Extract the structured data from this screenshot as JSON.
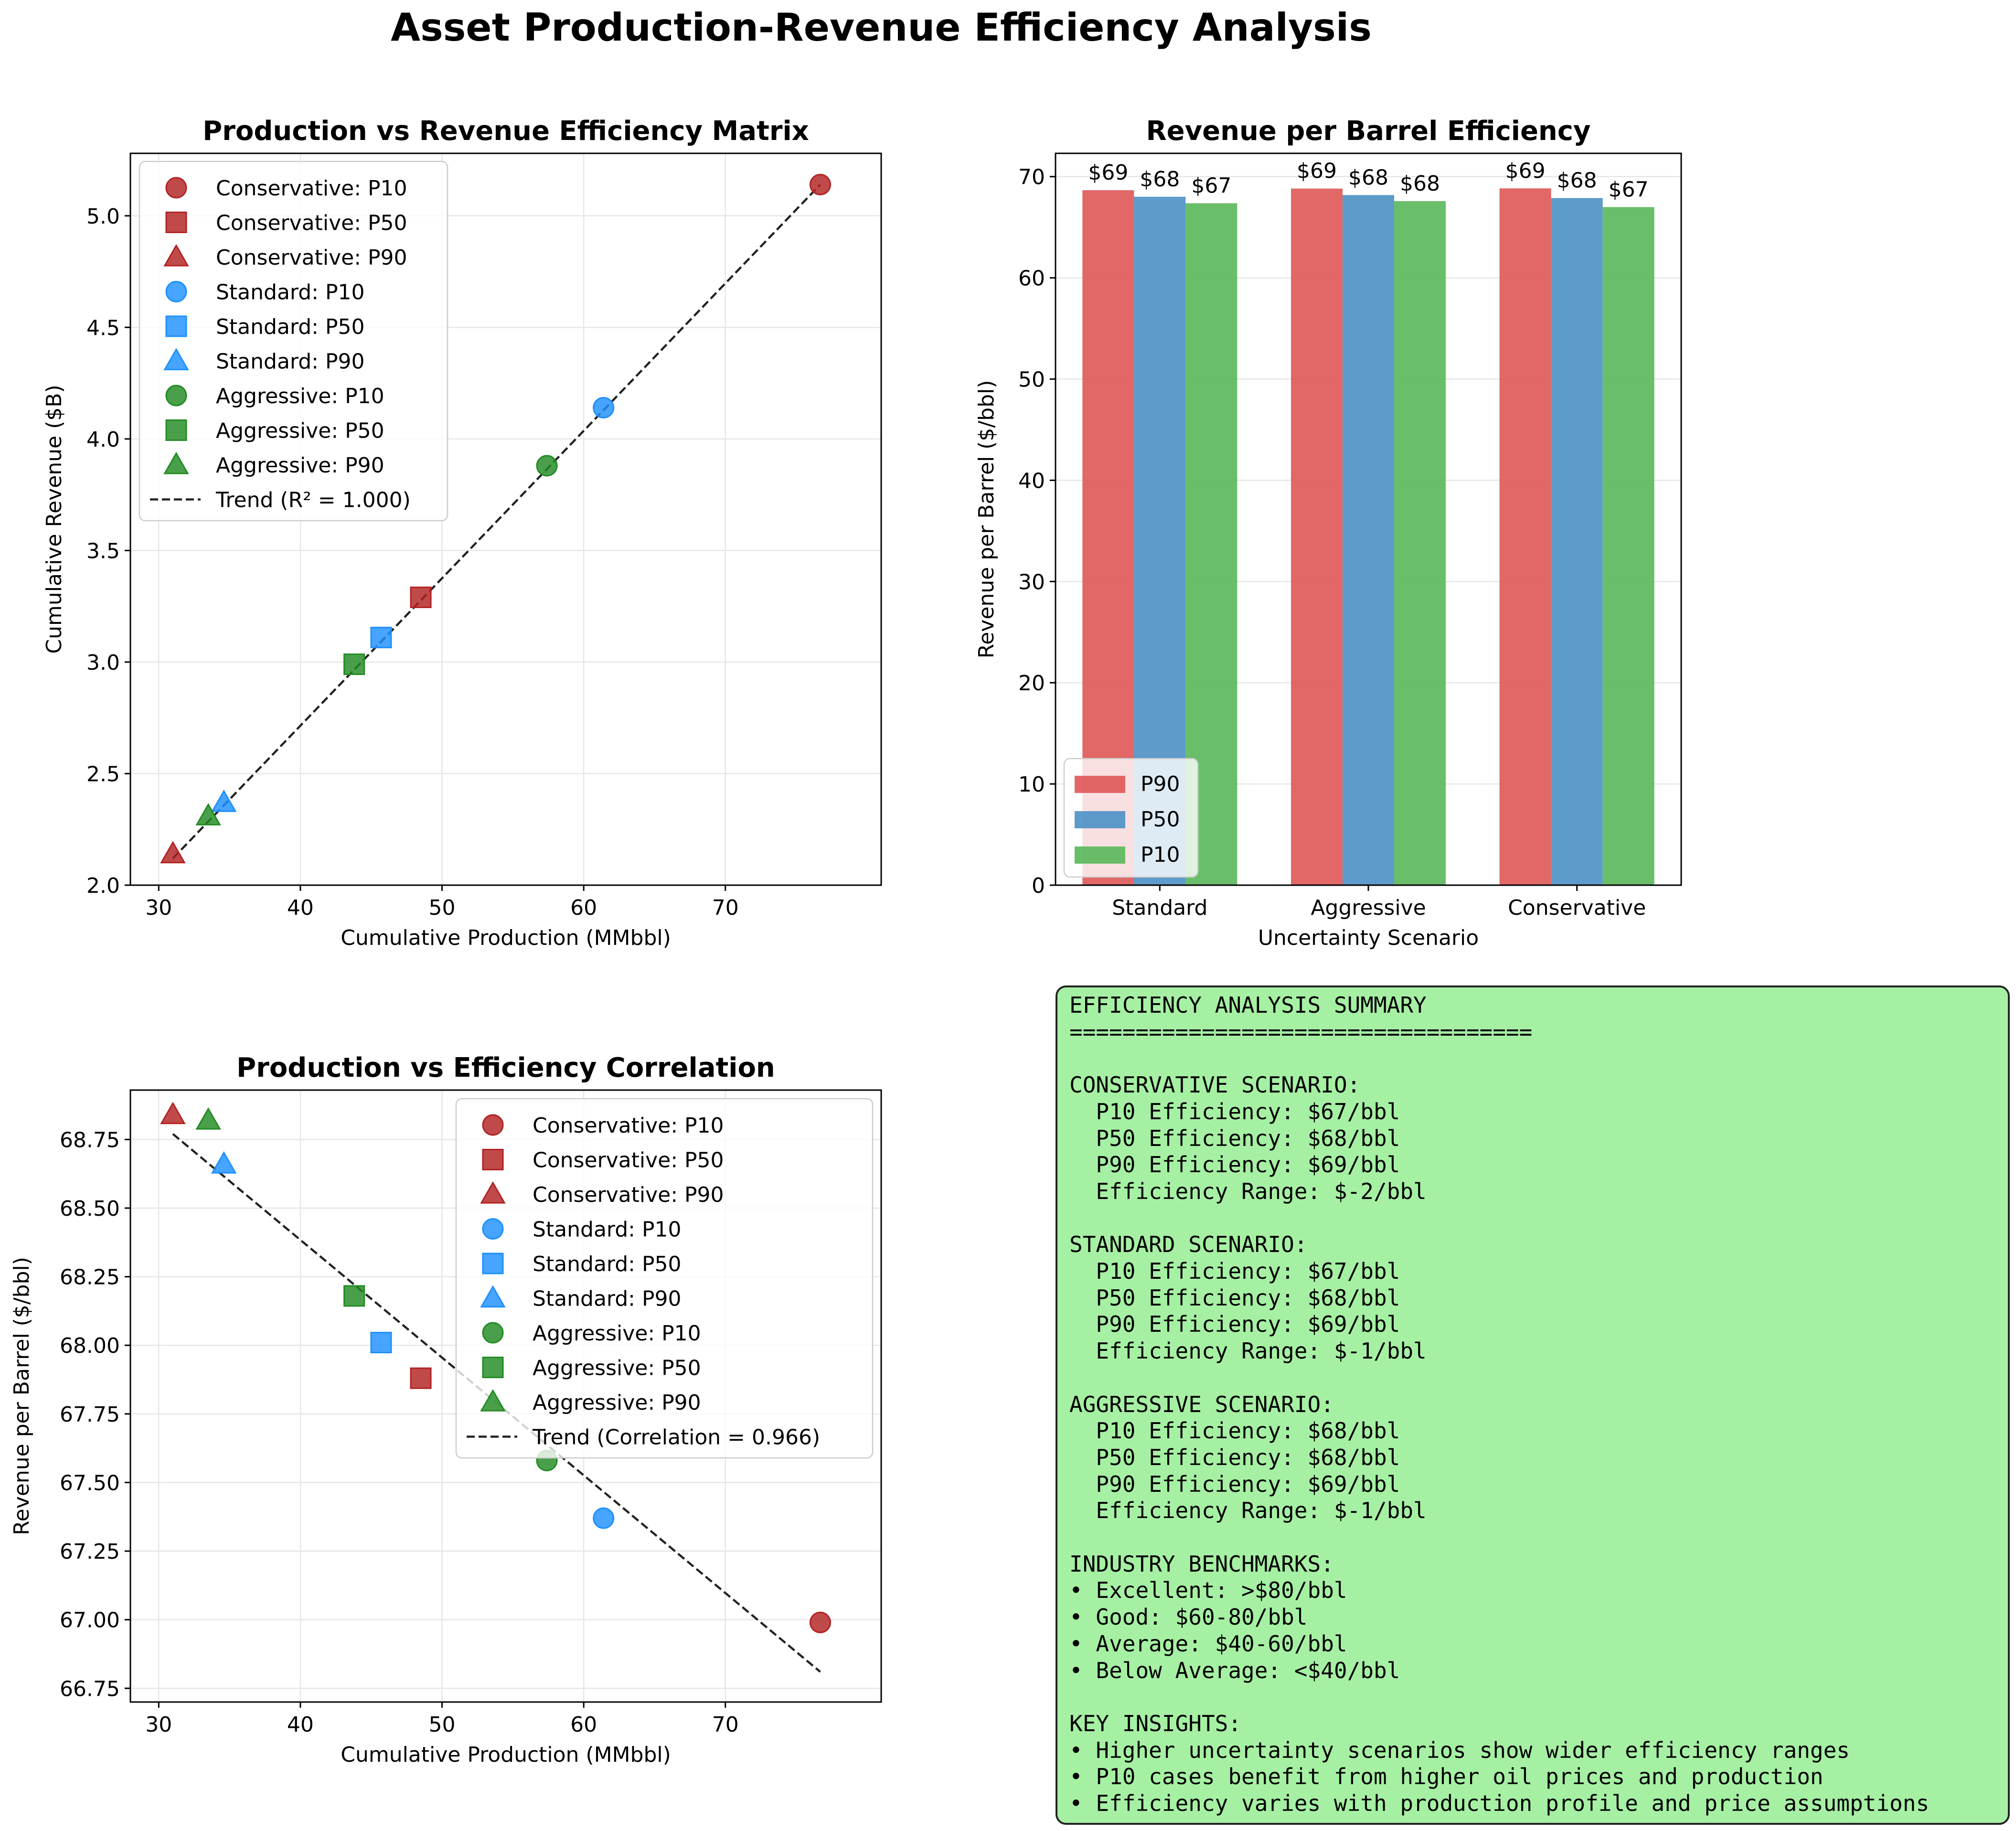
{
  "figure": {
    "title": "Asset Production-Revenue Efficiency Analysis"
  },
  "colors": {
    "Conservative": "#b22222",
    "Standard": "#1e90ff",
    "Aggressive": "#228b22",
    "P90": "#e05a5a",
    "P50": "#4f93c6",
    "P10": "#5cb85c"
  },
  "chart_data": [
    {
      "id": "matrix",
      "type": "scatter",
      "title": "Production vs Revenue Efficiency Matrix",
      "xlabel": "Cumulative Production (MMbbl)",
      "ylabel": "Cumulative Revenue ($B)",
      "xlim": [
        28.0,
        81.0
      ],
      "ylim": [
        2.0,
        5.28
      ],
      "xticks": [
        30,
        40,
        50,
        60,
        70
      ],
      "yticks": [
        2.0,
        2.5,
        3.0,
        3.5,
        4.0,
        4.5,
        5.0
      ],
      "ytick_labels": [
        "2.0",
        "2.5",
        "3.0",
        "3.5",
        "4.0",
        "4.5",
        "5.0"
      ],
      "grid": true,
      "legend": "upper left",
      "series": [
        {
          "name": "Conservative: P10",
          "scenario": "Conservative",
          "marker": "circle",
          "x": 76.7,
          "y": 5.14
        },
        {
          "name": "Conservative: P50",
          "scenario": "Conservative",
          "marker": "square",
          "x": 48.5,
          "y": 3.29
        },
        {
          "name": "Conservative: P90",
          "scenario": "Conservative",
          "marker": "triangle",
          "x": 31.0,
          "y": 2.14
        },
        {
          "name": "Standard: P10",
          "scenario": "Standard",
          "marker": "circle",
          "x": 61.4,
          "y": 4.14
        },
        {
          "name": "Standard: P50",
          "scenario": "Standard",
          "marker": "square",
          "x": 45.7,
          "y": 3.11
        },
        {
          "name": "Standard: P90",
          "scenario": "Standard",
          "marker": "triangle",
          "x": 34.6,
          "y": 2.37
        },
        {
          "name": "Aggressive: P10",
          "scenario": "Aggressive",
          "marker": "circle",
          "x": 57.4,
          "y": 3.88
        },
        {
          "name": "Aggressive: P50",
          "scenario": "Aggressive",
          "marker": "square",
          "x": 43.8,
          "y": 2.99
        },
        {
          "name": "Aggressive: P90",
          "scenario": "Aggressive",
          "marker": "triangle",
          "x": 33.5,
          "y": 2.31
        }
      ],
      "trend": {
        "name": "Trend (R² = 1.000)",
        "x": [
          31.0,
          76.7
        ],
        "y": [
          2.12,
          5.14
        ]
      }
    },
    {
      "id": "bars",
      "type": "bar",
      "title": "Revenue per Barrel Efficiency",
      "xlabel": "Uncertainty Scenario",
      "ylabel": "Revenue per Barrel ($/bbl)",
      "categories": [
        "Standard",
        "Aggressive",
        "Conservative"
      ],
      "ylim": [
        0,
        72.3
      ],
      "yticks": [
        0,
        10,
        20,
        30,
        40,
        50,
        60,
        70
      ],
      "grid": true,
      "legend": "lower left",
      "series": [
        {
          "name": "P90",
          "values": [
            68.66,
            68.82,
            68.84
          ],
          "labels": [
            "$69",
            "$69",
            "$69"
          ]
        },
        {
          "name": "P50",
          "values": [
            68.01,
            68.18,
            67.88
          ],
          "labels": [
            "$68",
            "$68",
            "$68"
          ]
        },
        {
          "name": "P10",
          "values": [
            67.37,
            67.58,
            66.99
          ],
          "labels": [
            "$67",
            "$68",
            "$67"
          ]
        }
      ]
    },
    {
      "id": "correlation",
      "type": "scatter",
      "title": "Production vs Efficiency Correlation",
      "xlabel": "Cumulative Production (MMbbl)",
      "ylabel": "Revenue per Barrel ($/bbl)",
      "xlim": [
        28.0,
        81.0
      ],
      "ylim": [
        66.7,
        68.93
      ],
      "xticks": [
        30,
        40,
        50,
        60,
        70
      ],
      "yticks": [
        66.75,
        67.0,
        67.25,
        67.5,
        67.75,
        68.0,
        68.25,
        68.5,
        68.75
      ],
      "ytick_labels": [
        "66.75",
        "67.00",
        "67.25",
        "67.50",
        "67.75",
        "68.00",
        "68.25",
        "68.50",
        "68.75"
      ],
      "grid": true,
      "legend": "upper right",
      "series": [
        {
          "name": "Conservative: P10",
          "scenario": "Conservative",
          "marker": "circle",
          "x": 76.7,
          "y": 66.99
        },
        {
          "name": "Conservative: P50",
          "scenario": "Conservative",
          "marker": "square",
          "x": 48.5,
          "y": 67.88
        },
        {
          "name": "Conservative: P90",
          "scenario": "Conservative",
          "marker": "triangle",
          "x": 31.0,
          "y": 68.84
        },
        {
          "name": "Standard: P10",
          "scenario": "Standard",
          "marker": "circle",
          "x": 61.4,
          "y": 67.37
        },
        {
          "name": "Standard: P50",
          "scenario": "Standard",
          "marker": "square",
          "x": 45.7,
          "y": 68.01
        },
        {
          "name": "Standard: P90",
          "scenario": "Standard",
          "marker": "triangle",
          "x": 34.6,
          "y": 68.66
        },
        {
          "name": "Aggressive: P10",
          "scenario": "Aggressive",
          "marker": "circle",
          "x": 57.4,
          "y": 67.58
        },
        {
          "name": "Aggressive: P50",
          "scenario": "Aggressive",
          "marker": "square",
          "x": 43.8,
          "y": 68.18
        },
        {
          "name": "Aggressive: P90",
          "scenario": "Aggressive",
          "marker": "triangle",
          "x": 33.5,
          "y": 68.82
        }
      ],
      "trend": {
        "name": "Trend (Correlation = 0.966)",
        "x": [
          31.0,
          76.7
        ],
        "y": [
          68.77,
          66.81
        ]
      }
    }
  ],
  "summary": {
    "lines": [
      "EFFICIENCY ANALYSIS SUMMARY",
      "===================================",
      "",
      "CONSERVATIVE SCENARIO:",
      "  P10 Efficiency: $67/bbl",
      "  P50 Efficiency: $68/bbl",
      "  P90 Efficiency: $69/bbl",
      "  Efficiency Range: $-2/bbl",
      "",
      "STANDARD SCENARIO:",
      "  P10 Efficiency: $67/bbl",
      "  P50 Efficiency: $68/bbl",
      "  P90 Efficiency: $69/bbl",
      "  Efficiency Range: $-1/bbl",
      "",
      "AGGRESSIVE SCENARIO:",
      "  P10 Efficiency: $68/bbl",
      "  P50 Efficiency: $68/bbl",
      "  P90 Efficiency: $69/bbl",
      "  Efficiency Range: $-1/bbl",
      "",
      "INDUSTRY BENCHMARKS:",
      "• Excellent: >$80/bbl",
      "• Good: $60-80/bbl",
      "• Average: $40-60/bbl",
      "• Below Average: <$40/bbl",
      "",
      "KEY INSIGHTS:",
      "• Higher uncertainty scenarios show wider efficiency ranges",
      "• P10 cases benefit from higher oil prices and production",
      "• Efficiency varies with production profile and price assumptions"
    ]
  }
}
